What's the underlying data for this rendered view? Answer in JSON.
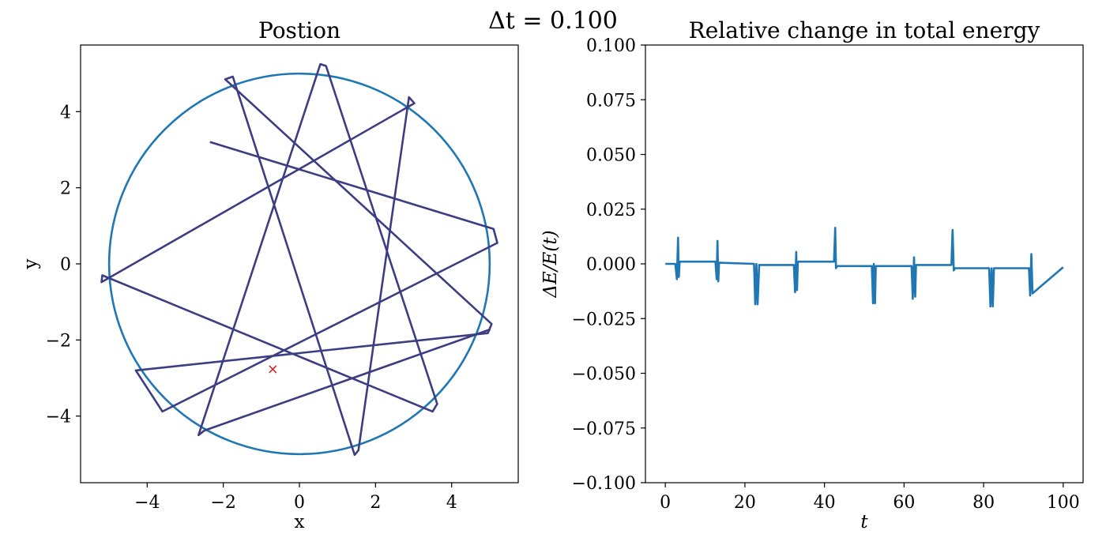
{
  "figure": {
    "suptitle": "Δt = 0.100"
  },
  "chart_data": [
    {
      "type": "line",
      "title": "Postion",
      "xlabel": "x",
      "ylabel": "y",
      "xlim": [
        -5.75,
        5.75
      ],
      "ylim": [
        -5.75,
        5.75
      ],
      "xticks": [
        -4,
        -2,
        0,
        2,
        4
      ],
      "yticks": [
        -4,
        -2,
        0,
        2,
        4
      ],
      "grid": false,
      "series": [
        {
          "style": "circle",
          "center": [
            0,
            0
          ],
          "radius": 5.0,
          "color": "#1f77b4"
        },
        {
          "style": "line",
          "color": "#3d3d82",
          "points": [
            [
              -2.35,
              3.2
            ],
            [
              5.1,
              0.92
            ],
            [
              5.2,
              0.55
            ],
            [
              -3.6,
              -3.88
            ],
            [
              -4.3,
              -2.8
            ],
            [
              4.95,
              -1.82
            ],
            [
              5.05,
              -1.58
            ],
            [
              -1.95,
              4.85
            ],
            [
              -1.75,
              4.92
            ],
            [
              1.45,
              -5.02
            ],
            [
              1.55,
              -4.9
            ],
            [
              2.88,
              4.38
            ],
            [
              3.02,
              4.22
            ],
            [
              -5.2,
              -0.48
            ],
            [
              -5.18,
              -0.3
            ],
            [
              3.5,
              -3.88
            ],
            [
              3.62,
              -3.68
            ],
            [
              0.7,
              5.2
            ],
            [
              0.55,
              5.25
            ],
            [
              -2.65,
              -4.5
            ],
            [
              -2.5,
              -4.38
            ],
            [
              5.02,
              -1.72
            ]
          ]
        },
        {
          "style": "marker",
          "marker": "x",
          "color": "#d62728",
          "points": [
            [
              -0.7,
              -2.77
            ]
          ]
        }
      ]
    },
    {
      "type": "line",
      "title": "Relative change in total energy",
      "xlabel": "t",
      "ylabel": "ΔE/E(t)",
      "xlim": [
        -5,
        105
      ],
      "ylim": [
        -0.1,
        0.1
      ],
      "xticks": [
        0,
        20,
        40,
        60,
        80,
        100
      ],
      "yticks": [
        -0.1,
        -0.075,
        -0.05,
        -0.025,
        0.0,
        0.025,
        0.05,
        0.075,
        0.1
      ],
      "ytick_labels": [
        "−0.100",
        "−0.075",
        "−0.050",
        "−0.025",
        "0.000",
        "0.025",
        "0.050",
        "0.075",
        "0.100"
      ],
      "grid": false,
      "series": [
        {
          "color": "#1f77b4",
          "x": [
            0,
            2.5,
            2.9,
            3.2,
            3.4,
            3.6,
            3.8,
            4.0,
            12.6,
            12.9,
            13.1,
            13.3,
            13.5,
            13.7,
            22.3,
            22.6,
            22.9,
            23.2,
            23.6,
            32.3,
            32.6,
            32.9,
            33.1,
            33.3,
            42.4,
            42.7,
            42.9,
            43.2,
            51.9,
            52.2,
            52.4,
            52.7,
            52.9,
            61.9,
            62.2,
            62.5,
            62.8,
            63.0,
            71.9,
            72.2,
            72.5,
            72.8,
            81.4,
            81.7,
            82.0,
            82.3,
            82.6,
            91.4,
            91.7,
            92.0,
            92.3,
            100
          ],
          "y": [
            0.0,
            0.0,
            -0.007,
            0.012,
            -0.006,
            0.001,
            0.001,
            0.001,
            0.001,
            -0.007,
            0.0105,
            -0.008,
            0.0005,
            0.0005,
            0.0,
            -0.0185,
            0.0,
            -0.0185,
            -0.0005,
            -0.0005,
            -0.013,
            0.0055,
            -0.012,
            0.001,
            0.001,
            0.0165,
            -0.002,
            -0.001,
            -0.001,
            -0.018,
            0.0,
            -0.018,
            -0.001,
            -0.001,
            -0.016,
            0.003,
            -0.015,
            -0.0005,
            -0.0005,
            0.0155,
            -0.003,
            -0.002,
            -0.002,
            -0.0195,
            -0.002,
            -0.0195,
            -0.002,
            -0.002,
            -0.0145,
            0.0045,
            -0.0135,
            -0.0015
          ]
        }
      ]
    }
  ]
}
